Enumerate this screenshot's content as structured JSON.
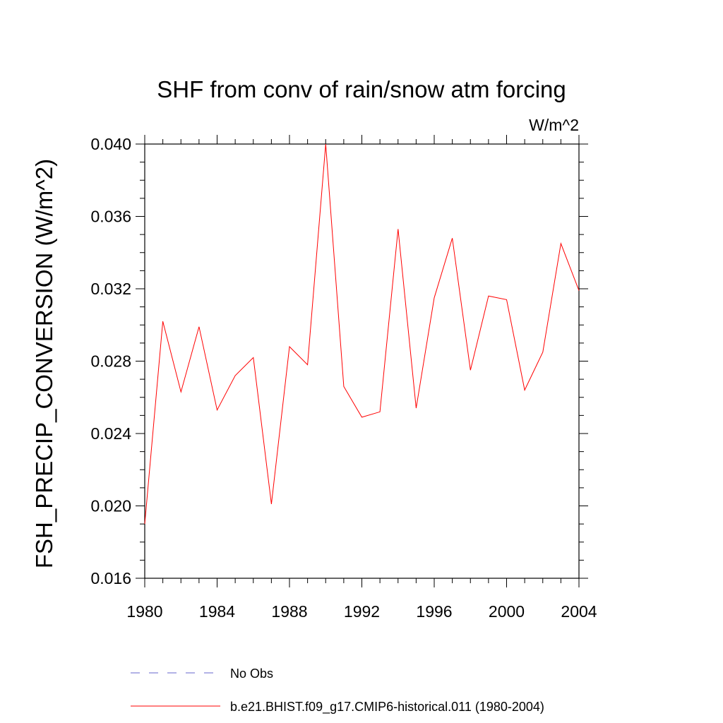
{
  "chart_data": {
    "type": "line",
    "title": "SHF from conv of rain/snow atm forcing",
    "units_label": "W/m^2",
    "ylabel": "FSH_PRECIP_CONVERSION  (W/m^2)",
    "xlabel": "",
    "xlim": [
      1980,
      2004
    ],
    "ylim": [
      0.016,
      0.04
    ],
    "x_ticks": [
      1980,
      1984,
      1988,
      1992,
      1996,
      2000,
      2004
    ],
    "y_ticks": [
      "0.016",
      "0.020",
      "0.024",
      "0.028",
      "0.032",
      "0.036",
      "0.040"
    ],
    "grid": false,
    "series": [
      {
        "name": "b.e21.BHIST.f09_g17.CMIP6-historical.011 (1980-2004)",
        "color": "#ff0000",
        "x": [
          1980,
          1981,
          1982,
          1983,
          1984,
          1985,
          1986,
          1987,
          1988,
          1989,
          1990,
          1991,
          1992,
          1993,
          1994,
          1995,
          1996,
          1997,
          1998,
          1999,
          2000,
          2001,
          2002,
          2003,
          2004
        ],
        "y": [
          0.019,
          0.0302,
          0.0263,
          0.0299,
          0.0253,
          0.0272,
          0.0282,
          0.0201,
          0.0288,
          0.0278,
          0.04,
          0.0266,
          0.0249,
          0.0252,
          0.0353,
          0.0254,
          0.0315,
          0.0348,
          0.0275,
          0.0316,
          0.0314,
          0.0264,
          0.0285,
          0.0345,
          0.0319
        ]
      }
    ],
    "legend": {
      "placement": "bottom",
      "items": [
        {
          "label": "No Obs",
          "color": "#6666cc",
          "style": "dashed"
        },
        {
          "label": "b.e21.BHIST.f09_g17.CMIP6-historical.011 (1980-2004)",
          "color": "#ff0000",
          "style": "solid"
        }
      ]
    }
  }
}
